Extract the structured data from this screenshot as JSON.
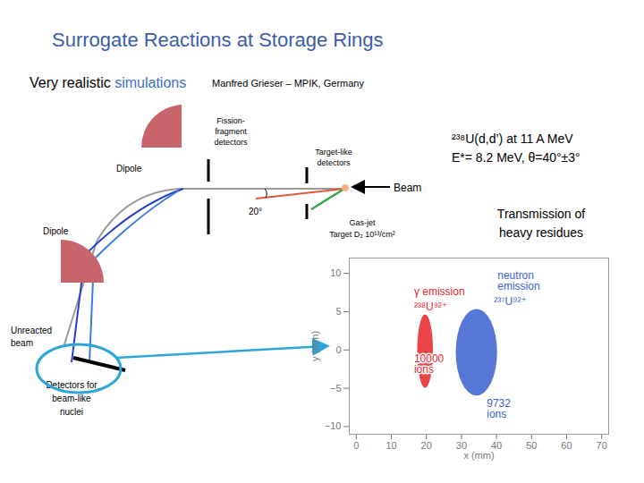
{
  "header": {
    "title": "Surrogate Reactions at Storage Rings",
    "subtitle": {
      "text": "Very realistic",
      "highlight": "simulations"
    },
    "author": "Manfred Grieser – MPIK, Germany"
  },
  "diagram": {
    "dipole_labels": [
      "Dipole",
      "Dipole"
    ],
    "fission_detectors": [
      "Fission-",
      "fragment",
      "detectors"
    ],
    "target_detectors": [
      "Target-like",
      "detectors"
    ],
    "beam": "Beam",
    "angle": "20°",
    "gas_jet": [
      "Gas-jet",
      "Target D₂ 10¹³/cm²"
    ],
    "unreacted": [
      "Unreacted",
      "beam"
    ],
    "beam_like": [
      "Detectors for",
      "beam-like",
      "nuclei"
    ],
    "reaction": [
      "²³⁸U(d,d’) at 11 A MeV",
      "E*= 8.2 MeV, θ=40°±3°"
    ],
    "transmission": [
      "Transmission of",
      "heavy residues"
    ]
  },
  "chart_data": {
    "type": "scatter",
    "x_label": "x (mm)",
    "y_label": "y (mm)",
    "xlim": [
      -2,
      72
    ],
    "ylim": [
      -11,
      12
    ],
    "xticks": [
      0,
      10,
      20,
      30,
      40,
      50,
      60,
      70
    ],
    "yticks": [
      -10,
      -5,
      0,
      5,
      10
    ],
    "series": [
      {
        "name": "γ emission",
        "nuclide": "²³⁸U⁹²⁺",
        "count_label": "10000 ions",
        "color": "#e8242a",
        "x_range": [
          17.5,
          22
        ],
        "y_range": [
          -5,
          4.6
        ]
      },
      {
        "name": "neutron emission",
        "nuclide": "²³⁷U⁹²⁺",
        "count_label": "9732 ions",
        "color": "#3a5fd0",
        "x_range": [
          28.5,
          40.3
        ],
        "y_range": [
          -6,
          5.3
        ]
      }
    ]
  }
}
